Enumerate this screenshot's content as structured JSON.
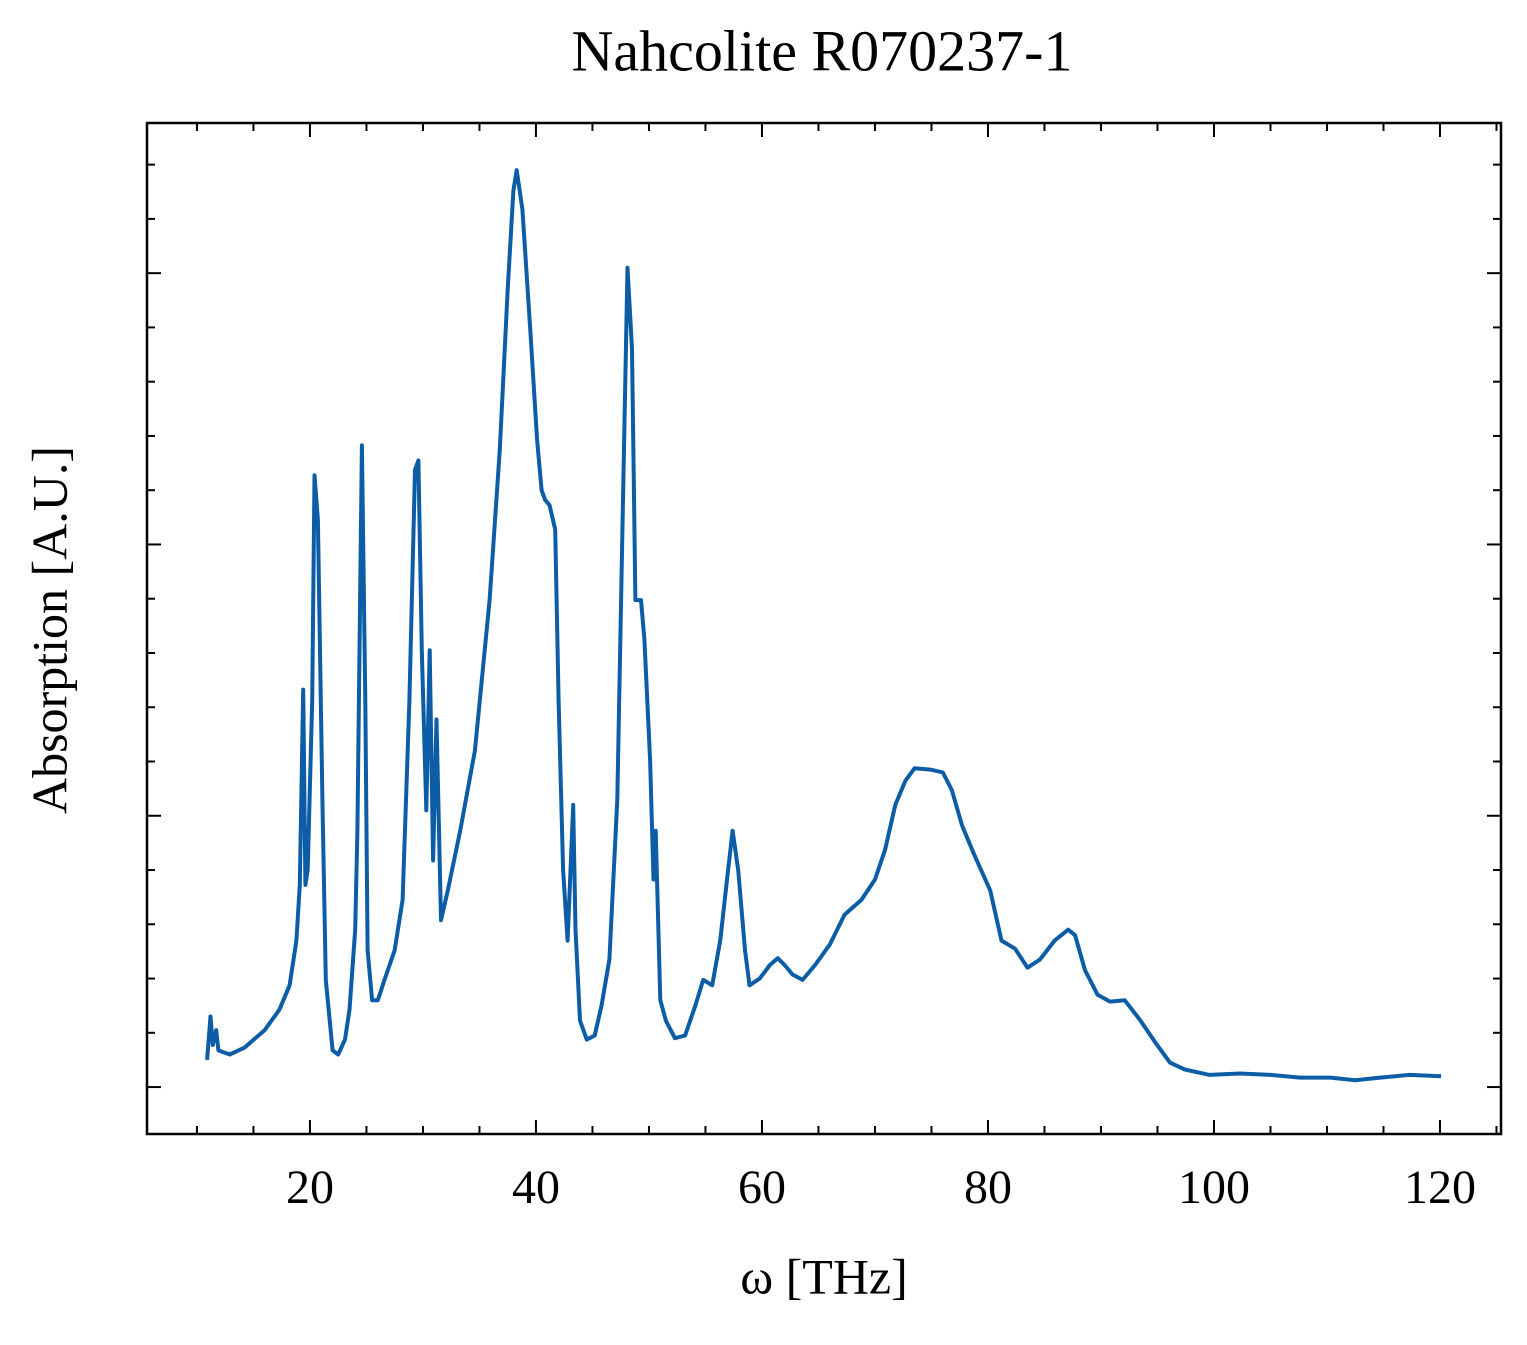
{
  "chart_data": {
    "type": "line",
    "title": "Nahcolite R070237-1",
    "x_label": "ω [THz]",
    "y_label": "Absorption [A.U.]",
    "color": "#0c5da5",
    "x": [
      10.9,
      11.2,
      11.4,
      11.7,
      11.9,
      12.9,
      14.2,
      16.0,
      17.3,
      18.2,
      18.8,
      19.1,
      19.4,
      19.6,
      19.8,
      20.2,
      20.4,
      20.7,
      21.1,
      21.4,
      22.0,
      22.5,
      23.1,
      23.5,
      24.0,
      24.2,
      24.6,
      24.9,
      25.1,
      25.5,
      26.0,
      26.6,
      27.5,
      28.2,
      28.8,
      29.3,
      29.6,
      29.9,
      30.3,
      30.6,
      30.9,
      31.2,
      31.6,
      32.2,
      33.3,
      34.6,
      35.9,
      36.8,
      37.5,
      38.0,
      38.3,
      38.8,
      39.5,
      40.1,
      40.5,
      40.8,
      41.2,
      41.7,
      42.0,
      42.4,
      42.8,
      43.3,
      43.5,
      43.9,
      44.5,
      45.2,
      45.8,
      46.5,
      47.2,
      47.7,
      48.1,
      48.5,
      48.8,
      49.3,
      49.6,
      50.1,
      50.4,
      50.6,
      51.0,
      51.5,
      52.3,
      53.2,
      54.1,
      54.8,
      55.6,
      56.3,
      57.0,
      57.4,
      57.9,
      58.5,
      58.9,
      59.8,
      60.7,
      61.4,
      62.0,
      62.7,
      63.6,
      64.7,
      66.0,
      67.3,
      68.8,
      70.0,
      70.9,
      71.8,
      72.7,
      73.5,
      74.9,
      76.0,
      76.8,
      77.7,
      78.8,
      80.2,
      81.2,
      82.4,
      83.5,
      84.6,
      85.9,
      87.1,
      87.7,
      88.6,
      89.7,
      90.8,
      92.1,
      93.5,
      94.8,
      96.1,
      97.4,
      99.6,
      102.3,
      105.0,
      107.6,
      110.3,
      112.5,
      114.7,
      117.3,
      120.1
    ],
    "values": [
      0.02,
      0.052,
      0.031,
      0.042,
      0.027,
      0.024,
      0.029,
      0.042,
      0.057,
      0.075,
      0.108,
      0.149,
      0.293,
      0.149,
      0.16,
      0.285,
      0.451,
      0.418,
      0.212,
      0.079,
      0.027,
      0.024,
      0.035,
      0.057,
      0.116,
      0.189,
      0.473,
      0.285,
      0.101,
      0.064,
      0.064,
      0.079,
      0.101,
      0.138,
      0.285,
      0.455,
      0.462,
      0.322,
      0.204,
      0.322,
      0.167,
      0.271,
      0.123,
      0.145,
      0.189,
      0.248,
      0.359,
      0.47,
      0.588,
      0.661,
      0.676,
      0.647,
      0.558,
      0.477,
      0.44,
      0.433,
      0.429,
      0.411,
      0.285,
      0.16,
      0.108,
      0.208,
      0.116,
      0.049,
      0.035,
      0.038,
      0.06,
      0.094,
      0.212,
      0.433,
      0.604,
      0.544,
      0.359,
      0.359,
      0.33,
      0.241,
      0.153,
      0.189,
      0.064,
      0.049,
      0.036,
      0.038,
      0.06,
      0.079,
      0.075,
      0.108,
      0.16,
      0.189,
      0.16,
      0.101,
      0.075,
      0.08,
      0.09,
      0.095,
      0.09,
      0.083,
      0.079,
      0.09,
      0.105,
      0.127,
      0.138,
      0.153,
      0.175,
      0.208,
      0.226,
      0.235,
      0.234,
      0.232,
      0.219,
      0.193,
      0.171,
      0.145,
      0.108,
      0.102,
      0.088,
      0.094,
      0.108,
      0.116,
      0.112,
      0.086,
      0.068,
      0.063,
      0.064,
      0.049,
      0.033,
      0.018,
      0.013,
      0.009,
      0.01,
      0.009,
      0.007,
      0.007,
      0.005,
      0.007,
      0.009,
      0.008
    ],
    "xlim": [
      5.58,
      125.4
    ],
    "xticks": [
      20,
      40,
      60,
      80,
      100,
      120
    ],
    "xminorticks": [
      10,
      15,
      25,
      30,
      35,
      45,
      50,
      55,
      65,
      70,
      75,
      85,
      90,
      95,
      105,
      110,
      115,
      125
    ],
    "ylim": [
      -0.0346,
      0.7107
    ],
    "yticks": [
      0,
      0.2,
      0.4,
      0.6
    ],
    "yminorticks": [
      0.04,
      0.08,
      0.12,
      0.16,
      0.24,
      0.28,
      0.32,
      0.36,
      0.44,
      0.48,
      0.52,
      0.56,
      0.64,
      0.68
    ]
  }
}
